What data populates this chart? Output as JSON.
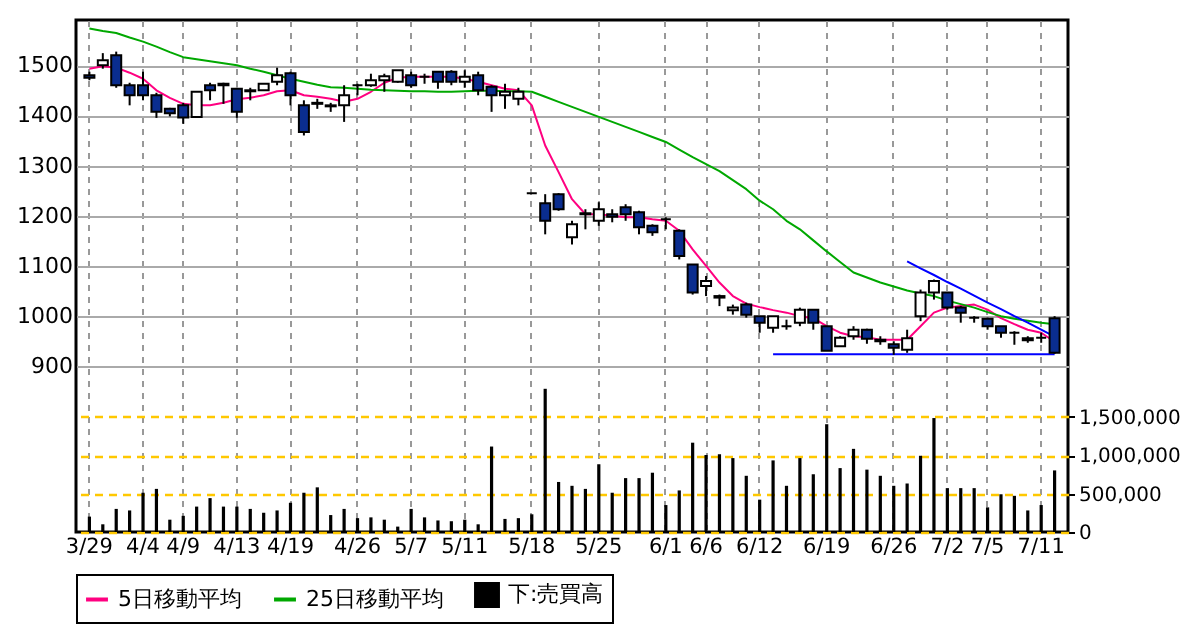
{
  "chart_data": {
    "type": "candlestick",
    "categories": [
      "3/29",
      null,
      null,
      null,
      "4/4",
      null,
      null,
      "4/9",
      null,
      null,
      null,
      "4/13",
      null,
      null,
      null,
      "4/19",
      null,
      null,
      null,
      null,
      "4/26",
      null,
      null,
      null,
      "5/7",
      null,
      null,
      null,
      "5/11",
      null,
      null,
      null,
      null,
      "5/18",
      null,
      null,
      null,
      null,
      "5/25",
      null,
      null,
      null,
      null,
      "6/1",
      null,
      null,
      "6/6",
      null,
      null,
      null,
      "6/12",
      null,
      null,
      null,
      null,
      "6/19",
      null,
      null,
      null,
      null,
      "6/26",
      null,
      null,
      null,
      "7/2",
      null,
      null,
      "7/5",
      null,
      null,
      null,
      "7/11",
      null
    ],
    "ylim": [
      570,
      1590
    ],
    "yticks": [
      900,
      1000,
      1100,
      1200,
      1300,
      1400,
      1500
    ],
    "y2lim": [
      0,
      6650000
    ],
    "y2ticks": [
      {
        "value": 0,
        "label": "0"
      },
      {
        "value": 500000,
        "label": "500,000"
      },
      {
        "value": 1000000,
        "label": "1,000,000"
      },
      {
        "value": 1500000,
        "label": "1,500,000"
      }
    ],
    "grid": true,
    "legend": "bottom",
    "series": [
      {
        "type": "candlestick",
        "colors": [
          "#0a2d8f",
          "#ffffff",
          "#0a2d8f",
          "#0a2d8f",
          "#0a2d8f",
          "#0a2d8f",
          "#0a2d8f",
          "#0a2d8f",
          "#ffffff",
          "#0a2d8f",
          "#0a2d8f",
          "#0a2d8f",
          "#ffffff",
          "#ffffff",
          "#ffffff",
          "#0a2d8f",
          "#0a2d8f",
          "#0a2d8f",
          "#0a2d8f",
          "#ffffff",
          "#000000",
          "#ffffff",
          "#ffffff",
          "#ffffff",
          "#0a2d8f",
          "#000000",
          "#0a2d8f",
          "#0a2d8f",
          "#ffffff",
          "#0a2d8f",
          "#0a2d8f",
          "#ffffff",
          "#ffffff",
          "#000000",
          "#0a2d8f",
          "#0a2d8f",
          "#ffffff",
          "#0a2d8f",
          "#ffffff",
          "#0a2d8f",
          "#0a2d8f",
          "#0a2d8f",
          "#0a2d8f",
          "#000000",
          "#0a2d8f",
          "#0a2d8f",
          "#ffffff",
          "#0a2d8f",
          "#ffffff",
          "#0a2d8f",
          "#0a2d8f",
          "#ffffff",
          "#000000",
          "#ffffff",
          "#0a2d8f",
          "#0a2d8f",
          "#ffffff",
          "#ffffff",
          "#0a2d8f",
          "#ffffff",
          "#0a2d8f",
          "#ffffff",
          "#ffffff",
          "#ffffff",
          "#0a2d8f",
          "#0a2d8f",
          "#000000",
          "#0a2d8f",
          "#0a2d8f",
          "#000000",
          "#0a2d8f",
          "#000000",
          "#0a2d8f"
        ],
        "ohlc": [
          [
            1480,
            1487,
            1470,
            1475
          ],
          [
            1500,
            1524,
            1493,
            1510
          ],
          [
            1520,
            1527,
            1455,
            1460
          ],
          [
            1460,
            1465,
            1420,
            1440
          ],
          [
            1460,
            1487,
            1430,
            1440
          ],
          [
            1440,
            1445,
            1395,
            1407
          ],
          [
            1413,
            1415,
            1398,
            1404
          ],
          [
            1420,
            1425,
            1383,
            1396
          ],
          [
            1397,
            1447,
            1397,
            1447
          ],
          [
            1460,
            1465,
            1430,
            1450
          ],
          [
            1463,
            1465,
            1423,
            1460
          ],
          [
            1453,
            1455,
            1395,
            1407
          ],
          [
            1448,
            1455,
            1430,
            1450
          ],
          [
            1450,
            1463,
            1450,
            1463
          ],
          [
            1467,
            1495,
            1460,
            1480
          ],
          [
            1484,
            1487,
            1420,
            1440
          ],
          [
            1420,
            1430,
            1360,
            1367
          ],
          [
            1425,
            1433,
            1413,
            1423
          ],
          [
            1420,
            1425,
            1407,
            1418
          ],
          [
            1420,
            1460,
            1387,
            1440
          ],
          [
            1460,
            1463,
            1440,
            1460
          ],
          [
            1460,
            1483,
            1457,
            1470
          ],
          [
            1470,
            1483,
            1447,
            1478
          ],
          [
            1467,
            1490,
            1465,
            1490
          ],
          [
            1480,
            1487,
            1455,
            1460
          ],
          [
            1477,
            1483,
            1463,
            1477
          ],
          [
            1487,
            1487,
            1453,
            1467
          ],
          [
            1487,
            1490,
            1460,
            1467
          ],
          [
            1467,
            1490,
            1455,
            1477
          ],
          [
            1480,
            1487,
            1440,
            1450
          ],
          [
            1457,
            1460,
            1407,
            1440
          ],
          [
            1440,
            1463,
            1413,
            1447
          ],
          [
            1433,
            1455,
            1420,
            1447
          ],
          [
            1245,
            1245,
            1245,
            1245
          ],
          [
            1225,
            1243,
            1163,
            1190
          ],
          [
            1243,
            1245,
            1210,
            1213
          ],
          [
            1157,
            1190,
            1143,
            1183
          ],
          [
            1205,
            1213,
            1173,
            1203
          ],
          [
            1190,
            1227,
            1180,
            1213
          ],
          [
            1203,
            1213,
            1187,
            1198
          ],
          [
            1217,
            1223,
            1190,
            1203
          ],
          [
            1207,
            1210,
            1163,
            1177
          ],
          [
            1180,
            1183,
            1160,
            1167
          ],
          [
            1193,
            1197,
            1173,
            1193
          ],
          [
            1170,
            1173,
            1113,
            1120
          ],
          [
            1103,
            1103,
            1043,
            1047
          ],
          [
            1060,
            1080,
            1040,
            1070
          ],
          [
            1040,
            1043,
            1020,
            1037
          ],
          [
            1012,
            1023,
            1003,
            1017
          ],
          [
            1023,
            1027,
            997,
            1003
          ],
          [
            1000,
            1000,
            967,
            987
          ],
          [
            977,
            1000,
            967,
            1000
          ],
          [
            980,
            993,
            973,
            980
          ],
          [
            987,
            1017,
            980,
            1013
          ],
          [
            1013,
            1013,
            973,
            987
          ],
          [
            980,
            980,
            931,
            931
          ],
          [
            940,
            960,
            940,
            957
          ],
          [
            960,
            980,
            953,
            973
          ],
          [
            973,
            975,
            945,
            955
          ],
          [
            950,
            960,
            943,
            953
          ],
          [
            944,
            950,
            923,
            937
          ],
          [
            933,
            973,
            927,
            956
          ],
          [
            1000,
            1053,
            990,
            1047
          ],
          [
            1047,
            1073,
            1033,
            1070
          ],
          [
            1047,
            1047,
            1013,
            1017
          ],
          [
            1017,
            1020,
            987,
            1007
          ],
          [
            997,
            1000,
            987,
            997
          ],
          [
            995,
            997,
            973,
            980
          ],
          [
            980,
            980,
            957,
            967
          ],
          [
            967,
            970,
            943,
            967
          ],
          [
            956,
            960,
            947,
            952
          ],
          [
            957,
            967,
            947,
            957
          ],
          [
            996,
            1000,
            925,
            927
          ]
        ]
      },
      {
        "type": "line",
        "name": "5日移動平均",
        "color": "#ff0080",
        "values": [
          1493,
          1498,
          1495,
          1485,
          1473,
          1450,
          1435,
          1423,
          1420,
          1420,
          1425,
          1432,
          1435,
          1440,
          1448,
          1450,
          1440,
          1437,
          1433,
          1427,
          1433,
          1447,
          1465,
          1475,
          1477,
          1477,
          1477,
          1477,
          1473,
          1467,
          1460,
          1453,
          1450,
          1420,
          1340,
          1287,
          1233,
          1203,
          1203,
          1200,
          1197,
          1197,
          1193,
          1190,
          1170,
          1133,
          1100,
          1067,
          1040,
          1025,
          1018,
          1012,
          1007,
          1000,
          996,
          980,
          967,
          960,
          958,
          953,
          953,
          953,
          980,
          1007,
          1017,
          1020,
          1023,
          1013,
          996,
          984,
          973,
          967,
          949
        ]
      },
      {
        "type": "line",
        "name": "25日移動平均",
        "color": "#00a800",
        "values": [
          1573,
          1568,
          1564,
          1555,
          1547,
          1537,
          1526,
          1516,
          1512,
          1508,
          1504,
          1500,
          1493,
          1487,
          1480,
          1473,
          1467,
          1461,
          1456,
          1455,
          1453,
          1451,
          1450,
          1449,
          1448,
          1448,
          1447,
          1447,
          1448,
          1449,
          1449,
          1448,
          1448,
          1447,
          1437,
          1427,
          1417,
          1407,
          1397,
          1387,
          1377,
          1367,
          1357,
          1347,
          1332,
          1317,
          1303,
          1289,
          1271,
          1253,
          1230,
          1213,
          1190,
          1173,
          1151,
          1129,
          1108,
          1087,
          1077,
          1067,
          1059,
          1051,
          1045,
          1040,
          1031,
          1024,
          1017,
          1008,
          1000,
          995,
          991,
          987,
          984
        ]
      },
      {
        "type": "bar",
        "axis": "y2",
        "name": "下:売買高",
        "color": "#000000",
        "values": [
          200000,
          100000,
          300000,
          280000,
          510000,
          560000,
          160000,
          210000,
          330000,
          440000,
          330000,
          330000,
          300000,
          250000,
          280000,
          380000,
          510000,
          580000,
          220000,
          300000,
          180000,
          190000,
          160000,
          70000,
          300000,
          190000,
          150000,
          140000,
          160000,
          100000,
          1110000,
          170000,
          180000,
          230000,
          1860000,
          650000,
          600000,
          560000,
          880000,
          510000,
          700000,
          700000,
          770000,
          350000,
          540000,
          1160000,
          1000000,
          1010000,
          960000,
          730000,
          420000,
          930000,
          600000,
          960000,
          750000,
          1400000,
          830000,
          1080000,
          810000,
          730000,
          600000,
          630000,
          990000,
          1480000,
          570000,
          570000,
          570000,
          320000,
          490000,
          470000,
          280000,
          350000,
          800000
        ]
      },
      {
        "type": "line",
        "color": "#0000ff",
        "values": [
          null,
          null,
          null,
          null,
          null,
          null,
          null,
          null,
          null,
          null,
          null,
          null,
          null,
          null,
          null,
          null,
          null,
          null,
          null,
          null,
          null,
          null,
          null,
          null,
          null,
          null,
          null,
          null,
          null,
          null,
          null,
          null,
          null,
          null,
          null,
          null,
          null,
          null,
          null,
          null,
          null,
          null,
          null,
          null,
          null,
          null,
          null,
          null,
          null,
          null,
          null,
          null,
          null,
          null,
          null,
          null,
          null,
          null,
          null,
          null,
          null,
          1109,
          1095,
          1082,
          1068,
          1055,
          1041,
          1027,
          1014,
          1000,
          987,
          973,
          959
        ]
      },
      {
        "type": "line",
        "color": "#0000ff",
        "values": [
          null,
          null,
          null,
          null,
          null,
          null,
          null,
          null,
          null,
          null,
          null,
          null,
          null,
          null,
          null,
          null,
          null,
          null,
          null,
          null,
          null,
          null,
          null,
          null,
          null,
          null,
          null,
          null,
          null,
          null,
          null,
          null,
          null,
          null,
          null,
          null,
          null,
          null,
          null,
          null,
          null,
          null,
          null,
          null,
          null,
          null,
          null,
          null,
          null,
          null,
          null,
          924,
          924,
          924,
          924,
          924,
          924,
          924,
          924,
          924,
          924,
          924,
          924,
          924,
          924,
          924,
          924,
          924,
          924,
          924,
          924,
          924,
          924
        ]
      }
    ]
  }
}
